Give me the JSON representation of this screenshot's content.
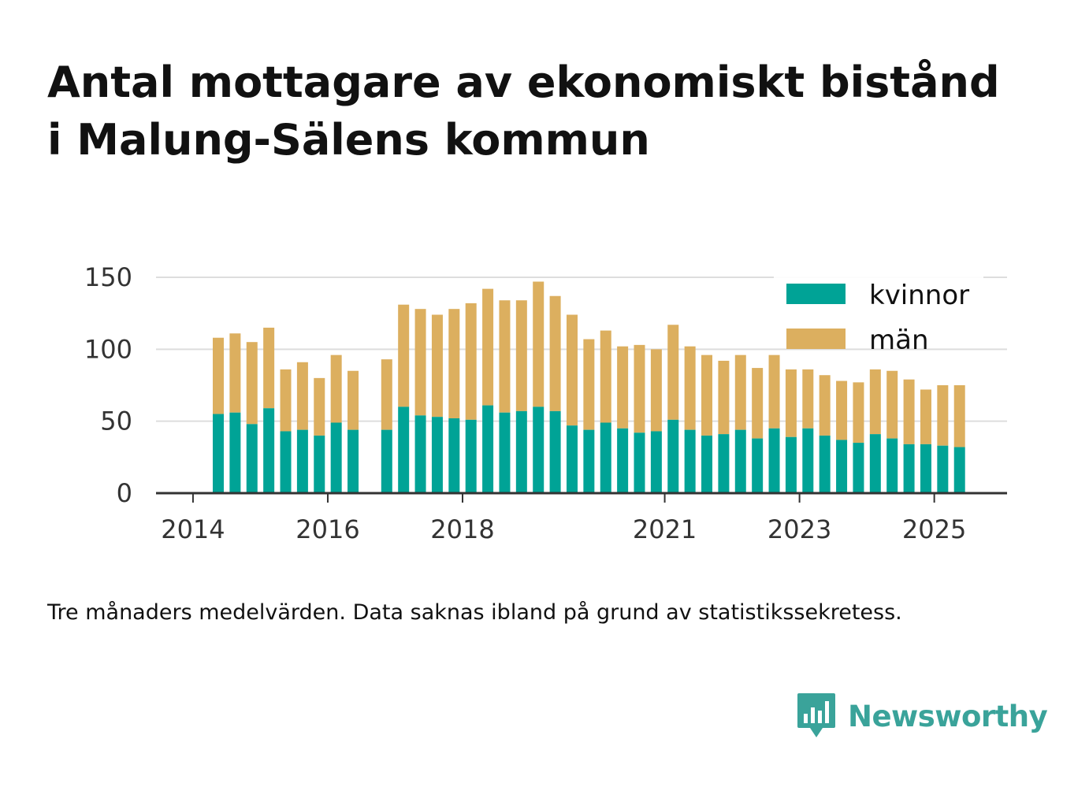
{
  "title_line1": "Antal mottagare av ekonomiskt bistånd",
  "title_line2": "i Malung-Sälens kommun",
  "footnote": "Tre månaders medelvärden. Data saknas ibland på grund av statistikssekretess.",
  "brand": {
    "name": "Newsworthy",
    "icon": "newsworthy-logo-icon",
    "color": "#3aa39a"
  },
  "colors": {
    "kvinnor": "#00a396",
    "man": "#dcaf5f",
    "grid": "#dddddd",
    "axis": "#333333"
  },
  "chart_data": {
    "type": "bar",
    "stacked": true,
    "title": "",
    "xlabel": "",
    "ylabel": "",
    "ylim": [
      0,
      150
    ],
    "yticks": [
      0,
      50,
      100,
      150
    ],
    "xticks": [
      2014,
      2016,
      2018,
      2021,
      2023,
      2025
    ],
    "grid": true,
    "legend_position": "top-right",
    "series_names": [
      "kvinnor",
      "män"
    ],
    "quarters": [
      "2014 Q2",
      "2014 Q3",
      "2014 Q4",
      "2015 Q1",
      "2015 Q2",
      "2015 Q3",
      "2015 Q4",
      "2016 Q1",
      "2016 Q2",
      "2016 Q3",
      "2016 Q4",
      "2017 Q1",
      "2017 Q2",
      "2017 Q3",
      "2017 Q4",
      "2018 Q1",
      "2018 Q2",
      "2018 Q3",
      "2018 Q4",
      "2019 Q1",
      "2019 Q2",
      "2019 Q3",
      "2019 Q4",
      "2020 Q1",
      "2020 Q2",
      "2020 Q3",
      "2020 Q4",
      "2021 Q1",
      "2021 Q2",
      "2021 Q3",
      "2021 Q4",
      "2022 Q1",
      "2022 Q2",
      "2022 Q3",
      "2022 Q4",
      "2023 Q1",
      "2023 Q2",
      "2023 Q3",
      "2023 Q4",
      "2024 Q1",
      "2024 Q2",
      "2024 Q3",
      "2024 Q4",
      "2025 Q1",
      "2025 Q2"
    ],
    "kvinnor": [
      55,
      56,
      48,
      59,
      43,
      44,
      40,
      49,
      44,
      null,
      44,
      60,
      54,
      53,
      52,
      51,
      61,
      56,
      57,
      60,
      57,
      47,
      44,
      49,
      45,
      42,
      43,
      51,
      44,
      40,
      41,
      44,
      38,
      45,
      39,
      45,
      40,
      37,
      35,
      41,
      38,
      34,
      34,
      33,
      32
    ],
    "total": [
      108,
      111,
      105,
      115,
      86,
      91,
      80,
      96,
      85,
      null,
      93,
      131,
      128,
      124,
      128,
      132,
      142,
      134,
      134,
      147,
      137,
      124,
      107,
      113,
      102,
      103,
      100,
      117,
      102,
      96,
      92,
      96,
      87,
      96,
      86,
      86,
      82,
      78,
      77,
      86,
      85,
      79,
      72,
      75,
      75
    ]
  }
}
